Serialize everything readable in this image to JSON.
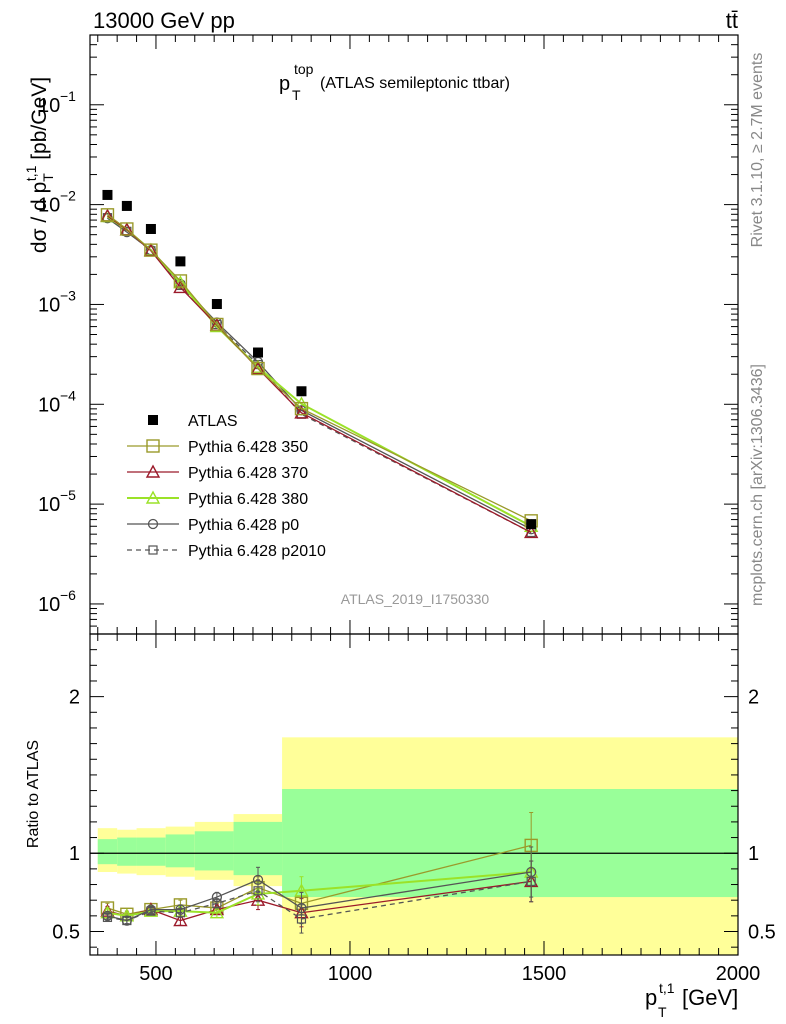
{
  "header": {
    "process": "13000 GeV pp",
    "final_state": "tt̄",
    "watermark_analysis": "ATLAS_2019_I1750330",
    "side_rivet": "Rivet 3.1.10, ≥ 2.7M events",
    "side_site": "mcplots.cern.ch [arXiv:1306.3436]"
  },
  "colors": {
    "data": "#000000",
    "p350": "#9a9a2a",
    "p370": "#9b1a2a",
    "p380": "#9be228",
    "p0": "#555555",
    "p2010": "#555555",
    "band_inner": "#99ff99",
    "band_outer": "#ffff99"
  },
  "chart_data": [
    {
      "type": "scatter",
      "panel": "main",
      "title": "p_T^top (ATLAS semileptonic ttbar)",
      "title_main": "p",
      "title_sub": "T",
      "title_sup": "top",
      "title_rest": "(ATLAS semileptonic ttbar)",
      "ylabel": "dσ / d p_T^t,1 [pb/GeV]",
      "yscale": "log",
      "ylim": [
        5e-07,
        0.5
      ],
      "xlim": [
        330,
        2000
      ],
      "y_ticks": [
        "10^-6",
        "10^-5",
        "10^-4",
        "10^-3",
        "10^-2",
        "10^-1"
      ],
      "legend": {
        "placement": "middle-left",
        "entries": [
          "ATLAS",
          "Pythia 6.428 350",
          "Pythia 6.428 370",
          "Pythia 6.428 380",
          "Pythia 6.428 p0",
          "Pythia 6.428 p2010"
        ]
      },
      "x": [
        375,
        425,
        487,
        563,
        657,
        763,
        875,
        1467
      ],
      "series": [
        {
          "name": "ATLAS",
          "values": [
            0.0125,
            0.0097,
            0.0057,
            0.0027,
            0.00101,
            0.00033,
            0.000135,
            6.3e-06
          ]
        },
        {
          "name": "Pythia 6.428 350",
          "values": [
            0.0079,
            0.0057,
            0.0035,
            0.00172,
            0.00063,
            0.000228,
            9.05e-05,
            6.8e-06
          ]
        },
        {
          "name": "Pythia 6.428 370",
          "values": [
            0.0077,
            0.0056,
            0.00345,
            0.00148,
            0.00062,
            0.000228,
            8.2e-05,
            5.2e-06
          ]
        },
        {
          "name": "Pythia 6.428 380",
          "values": [
            0.0076,
            0.0056,
            0.0035,
            0.00165,
            0.0006,
            0.000235,
            0.000101,
            6e-06
          ]
        },
        {
          "name": "Pythia 6.428 p0",
          "values": [
            0.0073,
            0.0053,
            0.0035,
            0.0016,
            0.00066,
            0.000265,
            8.7e-05,
            5.6e-06
          ]
        },
        {
          "name": "Pythia 6.428 p2010",
          "values": [
            0.0074,
            0.0054,
            0.00345,
            0.00155,
            0.00063,
            0.00025,
            7.95e-05,
            5.2e-06
          ]
        }
      ]
    },
    {
      "type": "line",
      "panel": "ratio",
      "ylabel": "Ratio to ATLAS",
      "xlabel": "p_T^t,1 [GeV]",
      "xlabel_main": "p",
      "xlabel_sub": "T",
      "xlabel_sup": "t,1",
      "xlabel_unit": "[GeV]",
      "ylim": [
        0.35,
        2.4
      ],
      "xlim": [
        330,
        2000
      ],
      "x_ticks": [
        500,
        1000,
        1500,
        2000
      ],
      "y_ticks": [
        0.5,
        1,
        2
      ],
      "bands": [
        {
          "x_lo": 350,
          "x_hi": 400,
          "inner": [
            0.93,
            1.09
          ],
          "outer": [
            0.88,
            1.16
          ]
        },
        {
          "x_lo": 400,
          "x_hi": 450,
          "inner": [
            0.92,
            1.1
          ],
          "outer": [
            0.87,
            1.15
          ]
        },
        {
          "x_lo": 450,
          "x_hi": 525,
          "inner": [
            0.92,
            1.1
          ],
          "outer": [
            0.86,
            1.16
          ]
        },
        {
          "x_lo": 525,
          "x_hi": 600,
          "inner": [
            0.91,
            1.12
          ],
          "outer": [
            0.85,
            1.17
          ]
        },
        {
          "x_lo": 600,
          "x_hi": 700,
          "inner": [
            0.89,
            1.14
          ],
          "outer": [
            0.83,
            1.2
          ]
        },
        {
          "x_lo": 700,
          "x_hi": 825,
          "inner": [
            0.86,
            1.2
          ],
          "outer": [
            0.79,
            1.25
          ]
        },
        {
          "x_lo": 825,
          "x_hi": 2000,
          "inner": [
            0.72,
            1.41
          ],
          "outer": [
            0.28,
            1.74
          ]
        }
      ],
      "x": [
        375,
        425,
        487,
        563,
        657,
        763,
        875,
        1467
      ],
      "series": [
        {
          "name": "Pythia 6.428 350",
          "values": [
            0.65,
            0.61,
            0.64,
            0.67,
            0.65,
            0.78,
            0.68,
            1.05
          ],
          "err": [
            0.03,
            0.02,
            0.02,
            0.03,
            0.03,
            0.07,
            0.07,
            0.21
          ]
        },
        {
          "name": "Pythia 6.428 370",
          "values": [
            0.63,
            0.6,
            0.64,
            0.57,
            0.64,
            0.7,
            0.62,
            0.82
          ],
          "err": [
            0.03,
            0.02,
            0.02,
            0.03,
            0.03,
            0.06,
            0.09,
            0.13
          ]
        },
        {
          "name": "Pythia 6.428 380",
          "values": [
            0.62,
            0.6,
            0.63,
            0.63,
            0.62,
            0.74,
            0.76,
            0.88
          ],
          "err": [
            0.03,
            0.02,
            0.02,
            0.03,
            0.03,
            0.07,
            0.09,
            0.16
          ]
        },
        {
          "name": "Pythia 6.428 p0",
          "values": [
            0.6,
            0.57,
            0.64,
            0.64,
            0.72,
            0.83,
            0.65,
            0.88
          ],
          "err": [
            0.02,
            0.02,
            0.02,
            0.03,
            0.03,
            0.08,
            0.1,
            0.16
          ]
        },
        {
          "name": "Pythia 6.428 p2010",
          "values": [
            0.59,
            0.57,
            0.63,
            0.62,
            0.68,
            0.76,
            0.58,
            0.82
          ],
          "err": [
            0.02,
            0.02,
            0.02,
            0.03,
            0.03,
            0.07,
            0.09,
            0.13
          ]
        }
      ]
    }
  ]
}
